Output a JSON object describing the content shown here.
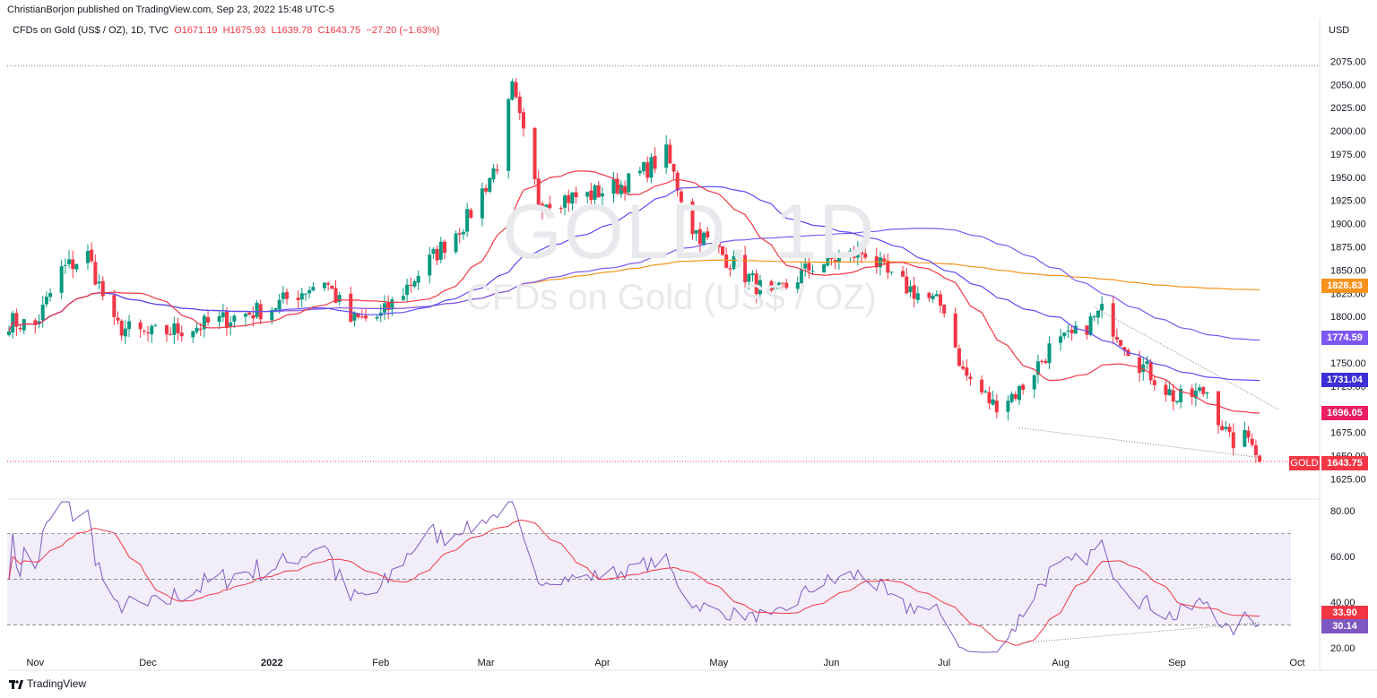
{
  "header": {
    "publish_line": "ChristianBorjon published on TradingView.com, Sep 23, 2022 15:48 UTC-5",
    "symbol_desc": "CFDs on Gold (US$ / OZ), 1D, TVC",
    "open": "O1671.19",
    "high": "H1675.93",
    "low": "L1639.78",
    "close": "C1643.75",
    "change": "−27.20 (−1.63%)"
  },
  "watermark": {
    "line1": "GOLD, 1D",
    "line2": "CFDs on Gold (US$ / OZ)"
  },
  "footer": {
    "brand": "TradingView"
  },
  "price_labels": {
    "currency": "USD",
    "sma200": "1828.83",
    "sma100": "1774.59",
    "sma50": "1731.04",
    "sma20": "1696.05",
    "last": "1643.75",
    "last_tag": "GOLD",
    "rsi_signal": "33.90",
    "rsi": "30.14"
  },
  "colors": {
    "up": "#089981",
    "down": "#f23645",
    "sma20": "#f23645",
    "sma50": "#5b4cf5",
    "sma100": "#7e57f2",
    "sma200": "#f7931a",
    "rsi": "#7e57c2",
    "rsi_signal": "#f23645"
  },
  "chart_data": [
    {
      "type": "candlestick",
      "title": "CFDs on Gold (US$ / OZ), 1D, TVC",
      "ylabel": "USD",
      "ylim": [
        1610,
        2085
      ],
      "yticks": [
        1625,
        1650,
        1675,
        1700,
        1725,
        1750,
        1775,
        1800,
        1825,
        1850,
        1875,
        1900,
        1925,
        1950,
        1975,
        2000,
        2025,
        2050,
        2075
      ],
      "x_labels": [
        "Nov",
        "Dec",
        "2022",
        "Feb",
        "Mar",
        "Apr",
        "May",
        "Jun",
        "Jul",
        "Aug",
        "Sep",
        "Oct"
      ],
      "x_label_dates": [
        "2021-11-01",
        "2021-12-01",
        "2022-01-03",
        "2022-02-01",
        "2022-03-01",
        "2022-04-01",
        "2022-05-02",
        "2022-06-01",
        "2022-07-01",
        "2022-08-01",
        "2022-09-01",
        "2022-10-03"
      ],
      "series_close": {
        "dates": [
          "2021-10-25",
          "2021-11-01",
          "2021-11-08",
          "2021-11-15",
          "2021-11-22",
          "2021-12-01",
          "2021-12-15",
          "2022-01-03",
          "2022-01-17",
          "2022-01-24",
          "2022-02-01",
          "2022-02-14",
          "2022-02-24",
          "2022-03-04",
          "2022-03-08",
          "2022-03-15",
          "2022-03-28",
          "2022-04-08",
          "2022-04-18",
          "2022-04-25",
          "2022-05-02",
          "2022-05-16",
          "2022-05-27",
          "2022-06-10",
          "2022-06-17",
          "2022-07-01",
          "2022-07-06",
          "2022-07-14",
          "2022-07-21",
          "2022-07-29",
          "2022-08-05",
          "2022-08-12",
          "2022-08-22",
          "2022-09-01",
          "2022-09-09",
          "2022-09-15",
          "2022-09-21",
          "2022-09-23"
        ],
        "close": [
          1795,
          1790,
          1850,
          1866,
          1790,
          1780,
          1790,
          1810,
          1840,
          1795,
          1800,
          1860,
          1905,
          1965,
          2045,
          1925,
          1930,
          1945,
          1975,
          1895,
          1870,
          1820,
          1855,
          1870,
          1840,
          1810,
          1740,
          1705,
          1720,
          1765,
          1780,
          1805,
          1750,
          1710,
          1720,
          1665,
          1670,
          1643.75
        ]
      },
      "indicators": [
        {
          "name": "SMA20",
          "last": 1696.05
        },
        {
          "name": "SMA50",
          "last": 1731.04
        },
        {
          "name": "SMA100",
          "last": 1774.59
        },
        {
          "name": "SMA200",
          "last": 1828.83
        }
      ],
      "last_price": 1643.75,
      "high_line": 2070,
      "trendlines": [
        {
          "name": "support",
          "from": [
            "2022-07-21",
            1680
          ],
          "to": [
            "2022-09-23",
            1648
          ]
        },
        {
          "name": "resistance",
          "from": [
            "2022-08-10",
            1810
          ],
          "to": [
            "2022-09-28",
            1700
          ]
        }
      ]
    },
    {
      "type": "line",
      "title": "RSI",
      "ylim": [
        18,
        84
      ],
      "yticks": [
        20,
        40,
        60,
        80
      ],
      "bands": [
        30,
        50,
        70
      ],
      "series": [
        {
          "name": "RSI",
          "last": 30.14
        },
        {
          "name": "Signal",
          "last": 33.9
        }
      ]
    }
  ]
}
